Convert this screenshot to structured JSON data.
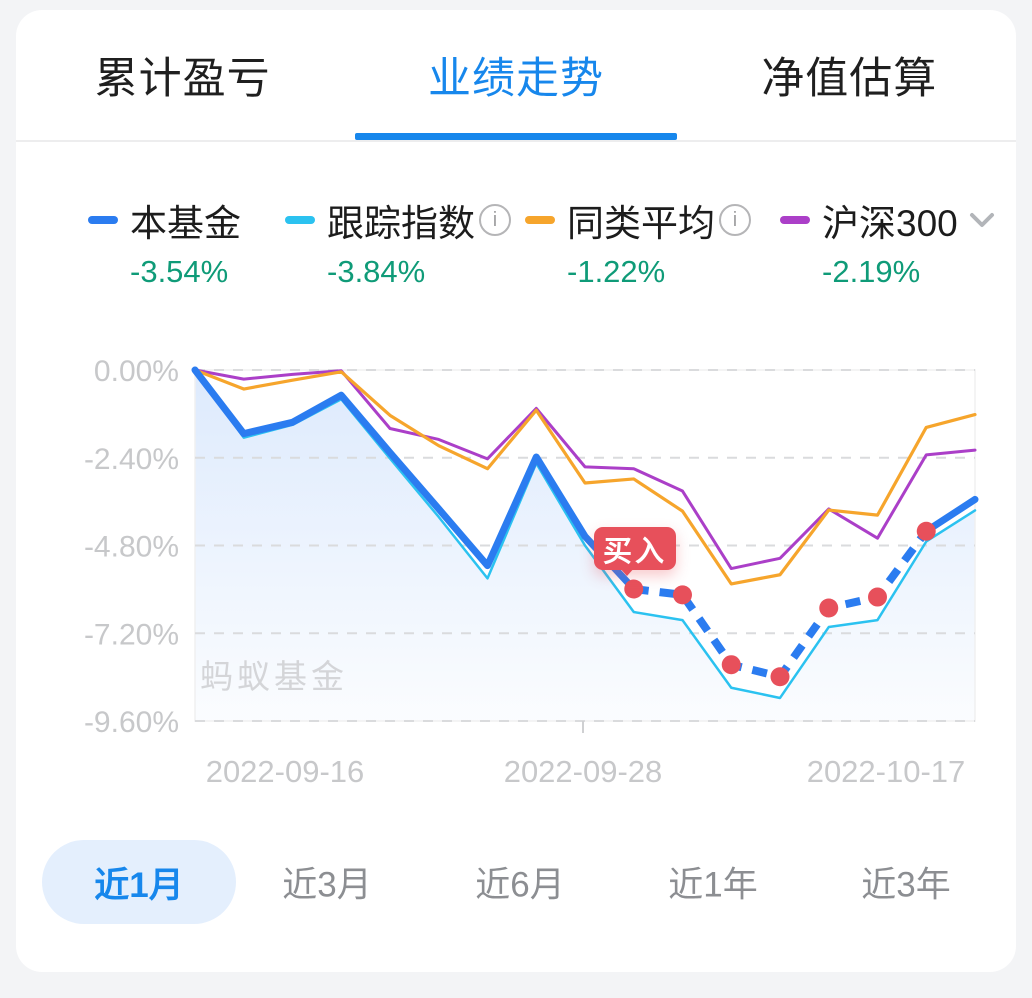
{
  "accent_color": "#1787ec",
  "value_color": "#0f9b78",
  "tabs": [
    {
      "label": "累计盈亏",
      "active": false
    },
    {
      "label": "业绩走势",
      "active": true
    },
    {
      "label": "净值估算",
      "active": false
    }
  ],
  "legend": [
    {
      "label": "本基金",
      "value": "-3.54%",
      "color": "#2b7cf0",
      "info": false,
      "chevron": false
    },
    {
      "label": "跟踪指数",
      "value": "-3.84%",
      "color": "#2bc2f0",
      "info": true,
      "chevron": false
    },
    {
      "label": "同类平均",
      "value": "-1.22%",
      "color": "#f6a52c",
      "info": true,
      "chevron": false
    },
    {
      "label": "沪深300",
      "value": "-2.19%",
      "color": "#ab3fc8",
      "info": false,
      "chevron": true
    }
  ],
  "chart_data": {
    "type": "line",
    "title": "业绩走势",
    "n_points": 17,
    "x_labels": [
      "2022-09-16",
      "2022-09-28",
      "2022-10-17"
    ],
    "y_ticks": [
      "0.00%",
      "-2.40%",
      "-4.80%",
      "-7.20%",
      "-9.60%"
    ],
    "ylim": [
      -9.6,
      0
    ],
    "grid": "horizontal-dashed",
    "axis_color": "#c7c8ca",
    "grid_color": "#dadbdd",
    "watermark": "蚂蚁基金",
    "watermark_color": "#d4d5d8",
    "series": [
      {
        "name": "本基金",
        "color": "#2b7cf0",
        "line_width": 7,
        "area_fill": true,
        "values": [
          0.0,
          -1.74,
          -1.43,
          -0.69,
          -2.26,
          -3.8,
          -5.35,
          -2.38,
          -4.55,
          -5.99,
          -6.15,
          -8.06,
          -8.39,
          -6.51,
          -6.21,
          -4.41,
          -3.54
        ],
        "dashed_range": [
          9,
          15
        ]
      },
      {
        "name": "跟踪指数",
        "color": "#2bc2f0",
        "line_width": 2.5,
        "area_fill": true,
        "values": [
          0.0,
          -1.85,
          -1.5,
          -0.8,
          -2.42,
          -4.02,
          -5.7,
          -2.55,
          -4.8,
          -6.62,
          -6.84,
          -8.69,
          -8.97,
          -7.03,
          -6.84,
          -4.69,
          -3.84
        ]
      },
      {
        "name": "同类平均",
        "color": "#f6a52c",
        "line_width": 3.2,
        "values": [
          0.0,
          -0.52,
          -0.28,
          -0.05,
          -1.24,
          -2.07,
          -2.7,
          -1.1,
          -3.09,
          -2.98,
          -3.86,
          -5.85,
          -5.6,
          -3.83,
          -3.97,
          -1.57,
          -1.22
        ]
      },
      {
        "name": "沪深300",
        "color": "#ab3fc8",
        "line_width": 3,
        "values": [
          0.0,
          -0.25,
          -0.12,
          -0.02,
          -1.6,
          -1.9,
          -2.43,
          -1.05,
          -2.65,
          -2.7,
          -3.31,
          -5.43,
          -5.15,
          -3.8,
          -4.6,
          -2.32,
          -2.19
        ]
      }
    ],
    "buy_marker": {
      "label": "买入",
      "series": "本基金",
      "point_index": 9,
      "dot_indices": [
        9,
        10,
        11,
        12,
        13,
        14,
        15
      ],
      "color": "#e7505b"
    }
  },
  "ranges": [
    {
      "label": "近1月",
      "active": true
    },
    {
      "label": "近3月",
      "active": false
    },
    {
      "label": "近6月",
      "active": false
    },
    {
      "label": "近1年",
      "active": false
    },
    {
      "label": "近3年",
      "active": false
    }
  ]
}
